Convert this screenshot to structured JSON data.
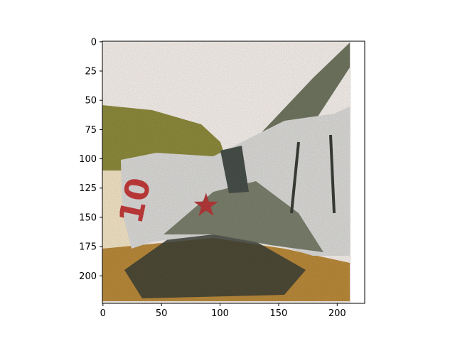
{
  "chart_data": {
    "type": "image",
    "title": "",
    "xlabel": "",
    "ylabel": "",
    "xlim": [
      -0.5,
      223.5
    ],
    "ylim": [
      223.5,
      -0.5
    ],
    "x_ticks": [
      0,
      50,
      100,
      150,
      200
    ],
    "y_ticks": [
      0,
      25,
      50,
      75,
      100,
      125,
      150,
      175,
      200
    ],
    "image_extent_x": [
      0,
      211
    ],
    "image_extent_y": [
      0,
      224
    ],
    "image_content": {
      "subject": "noisy photo of a light-grey fighter aircraft with red star and red number 10",
      "number_text": "10",
      "colors": {
        "sky": "#f4f0ea",
        "grass": "#8c8a3c",
        "ground": "#b88a3a",
        "fuselage": "#d9dad6",
        "camo": "#6f7660",
        "star": "#b43a3a",
        "number": "#c23b3b",
        "canopy": "#47504a",
        "pale_left": "#f1e4c4",
        "dark": "#3a3e36"
      }
    },
    "grid": false
  }
}
